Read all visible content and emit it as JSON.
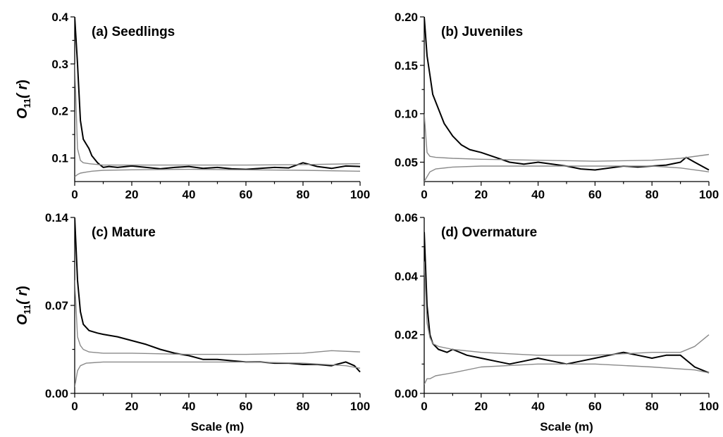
{
  "chart_data": [
    {
      "type": "line",
      "title": "(a) Seedlings",
      "ylabel": {
        "main": "O",
        "sub": "11",
        "tail": "( r",
        "close": ")"
      },
      "xlabel": "",
      "xlim": [
        0,
        100
      ],
      "ylim": [
        0.05,
        0.4
      ],
      "xticks": [
        0,
        20,
        40,
        60,
        80,
        100
      ],
      "xtick_labels": [
        "0",
        "20",
        "40",
        "60",
        "80",
        "100"
      ],
      "yticks": [
        0.1,
        0.2,
        0.3,
        0.4
      ],
      "ytick_labels": [
        "0.1",
        "0.2",
        "0.3",
        "0.4"
      ],
      "series": [
        {
          "role": "observed",
          "color": "#000000",
          "x": [
            0,
            1,
            2,
            3,
            4,
            5,
            6,
            8,
            10,
            12,
            15,
            20,
            25,
            30,
            35,
            40,
            45,
            50,
            55,
            60,
            65,
            70,
            75,
            80,
            85,
            90,
            95,
            100
          ],
          "values": [
            0.4,
            0.3,
            0.18,
            0.14,
            0.13,
            0.12,
            0.105,
            0.09,
            0.08,
            0.082,
            0.08,
            0.083,
            0.08,
            0.077,
            0.08,
            0.082,
            0.078,
            0.08,
            0.077,
            0.076,
            0.078,
            0.08,
            0.079,
            0.09,
            0.082,
            0.078,
            0.083,
            0.082
          ]
        },
        {
          "role": "upper-envelope",
          "color": "#8a8a8a",
          "x": [
            0,
            1,
            2,
            3,
            5,
            10,
            20,
            40,
            60,
            80,
            100
          ],
          "values": [
            0.3,
            0.12,
            0.095,
            0.09,
            0.088,
            0.085,
            0.085,
            0.085,
            0.085,
            0.086,
            0.088
          ]
        },
        {
          "role": "lower-envelope",
          "color": "#8a8a8a",
          "x": [
            0,
            1,
            2,
            4,
            6,
            10,
            20,
            40,
            60,
            80,
            100
          ],
          "values": [
            0.06,
            0.065,
            0.068,
            0.07,
            0.072,
            0.074,
            0.075,
            0.076,
            0.075,
            0.074,
            0.072
          ]
        }
      ]
    },
    {
      "type": "line",
      "title": "(b) Juveniles",
      "ylabel": null,
      "xlabel": "",
      "xlim": [
        0,
        100
      ],
      "ylim": [
        0.03,
        0.2
      ],
      "xticks": [
        0,
        20,
        40,
        60,
        80,
        100
      ],
      "xtick_labels": [
        "0",
        "20",
        "40",
        "60",
        "80",
        "100"
      ],
      "yticks": [
        0.05,
        0.1,
        0.15,
        0.2
      ],
      "ytick_labels": [
        "0.05",
        "0.10",
        "0.15",
        "0.20"
      ],
      "series": [
        {
          "role": "observed",
          "color": "#000000",
          "x": [
            0,
            1,
            2,
            3,
            5,
            7,
            10,
            13,
            16,
            20,
            25,
            30,
            35,
            40,
            45,
            50,
            55,
            60,
            65,
            70,
            75,
            80,
            85,
            90,
            92,
            95,
            100
          ],
          "values": [
            0.2,
            0.16,
            0.14,
            0.12,
            0.105,
            0.09,
            0.077,
            0.068,
            0.063,
            0.06,
            0.055,
            0.05,
            0.048,
            0.05,
            0.048,
            0.046,
            0.043,
            0.042,
            0.044,
            0.046,
            0.045,
            0.046,
            0.047,
            0.05,
            0.055,
            0.05,
            0.042
          ]
        },
        {
          "role": "upper-envelope",
          "color": "#8a8a8a",
          "x": [
            0,
            1,
            2,
            4,
            10,
            20,
            40,
            60,
            80,
            90,
            100
          ],
          "values": [
            0.1,
            0.06,
            0.056,
            0.055,
            0.054,
            0.053,
            0.052,
            0.051,
            0.052,
            0.054,
            0.058
          ]
        },
        {
          "role": "lower-envelope",
          "color": "#8a8a8a",
          "x": [
            0,
            1,
            2,
            4,
            10,
            20,
            40,
            60,
            80,
            90,
            100
          ],
          "values": [
            0.03,
            0.035,
            0.04,
            0.043,
            0.045,
            0.046,
            0.046,
            0.046,
            0.046,
            0.044,
            0.04
          ]
        }
      ]
    },
    {
      "type": "line",
      "title": "(c) Mature",
      "ylabel": {
        "main": "O",
        "sub": "11",
        "tail": "( r",
        "close": ")"
      },
      "xlabel": "Scale (m)",
      "xlim": [
        0,
        100
      ],
      "ylim": [
        0,
        0.14
      ],
      "xticks": [
        0,
        20,
        40,
        60,
        80,
        100
      ],
      "xtick_labels": [
        "0",
        "20",
        "40",
        "60",
        "80",
        "100"
      ],
      "yticks": [
        0,
        0.07,
        0.14
      ],
      "ytick_labels": [
        "0.00",
        "0.07",
        "0.14"
      ],
      "series": [
        {
          "role": "observed",
          "color": "#000000",
          "x": [
            0,
            1,
            2,
            3,
            5,
            8,
            10,
            15,
            20,
            25,
            30,
            35,
            40,
            45,
            50,
            55,
            60,
            65,
            70,
            75,
            80,
            85,
            90,
            95,
            98,
            100
          ],
          "values": [
            0.14,
            0.09,
            0.065,
            0.055,
            0.05,
            0.048,
            0.047,
            0.045,
            0.042,
            0.039,
            0.035,
            0.032,
            0.03,
            0.027,
            0.027,
            0.026,
            0.025,
            0.025,
            0.024,
            0.024,
            0.023,
            0.023,
            0.022,
            0.025,
            0.022,
            0.017
          ]
        },
        {
          "role": "upper-envelope",
          "color": "#8a8a8a",
          "x": [
            0,
            1,
            2,
            3,
            5,
            10,
            20,
            40,
            60,
            80,
            90,
            100
          ],
          "values": [
            0.09,
            0.045,
            0.038,
            0.035,
            0.033,
            0.032,
            0.032,
            0.031,
            0.031,
            0.032,
            0.034,
            0.033
          ]
        },
        {
          "role": "lower-envelope",
          "color": "#8a8a8a",
          "x": [
            0,
            1,
            2,
            4,
            10,
            20,
            40,
            60,
            80,
            95,
            100
          ],
          "values": [
            0.005,
            0.018,
            0.022,
            0.024,
            0.025,
            0.025,
            0.025,
            0.025,
            0.024,
            0.022,
            0.02
          ]
        }
      ]
    },
    {
      "type": "line",
      "title": "(d) Overmature",
      "ylabel": null,
      "xlabel": "Scale (m)",
      "xlim": [
        0,
        100
      ],
      "ylim": [
        0,
        0.06
      ],
      "xticks": [
        0,
        20,
        40,
        60,
        80,
        100
      ],
      "xtick_labels": [
        "0",
        "20",
        "40",
        "60",
        "80",
        "100"
      ],
      "yticks": [
        0,
        0.02,
        0.04,
        0.06
      ],
      "ytick_labels": [
        "0.00",
        "0.02",
        "0.04",
        "0.06"
      ],
      "series": [
        {
          "role": "observed",
          "color": "#000000",
          "x": [
            0,
            1,
            2,
            3,
            5,
            8,
            10,
            15,
            20,
            25,
            30,
            35,
            40,
            45,
            50,
            55,
            60,
            65,
            70,
            75,
            80,
            85,
            90,
            95,
            100
          ],
          "values": [
            0.055,
            0.03,
            0.02,
            0.017,
            0.015,
            0.014,
            0.015,
            0.013,
            0.012,
            0.011,
            0.01,
            0.011,
            0.012,
            0.011,
            0.01,
            0.011,
            0.012,
            0.013,
            0.014,
            0.013,
            0.012,
            0.013,
            0.013,
            0.009,
            0.007
          ]
        },
        {
          "role": "upper-envelope",
          "color": "#8a8a8a",
          "x": [
            0,
            1,
            2,
            3,
            5,
            10,
            20,
            40,
            60,
            80,
            90,
            95,
            100
          ],
          "values": [
            0.045,
            0.024,
            0.019,
            0.017,
            0.016,
            0.015,
            0.014,
            0.013,
            0.013,
            0.014,
            0.014,
            0.016,
            0.02
          ]
        },
        {
          "role": "lower-envelope",
          "color": "#8a8a8a",
          "x": [
            0,
            1,
            2,
            4,
            10,
            20,
            40,
            60,
            80,
            95,
            100
          ],
          "values": [
            0.003,
            0.005,
            0.005,
            0.006,
            0.007,
            0.009,
            0.01,
            0.01,
            0.009,
            0.008,
            0.007
          ]
        }
      ]
    }
  ]
}
